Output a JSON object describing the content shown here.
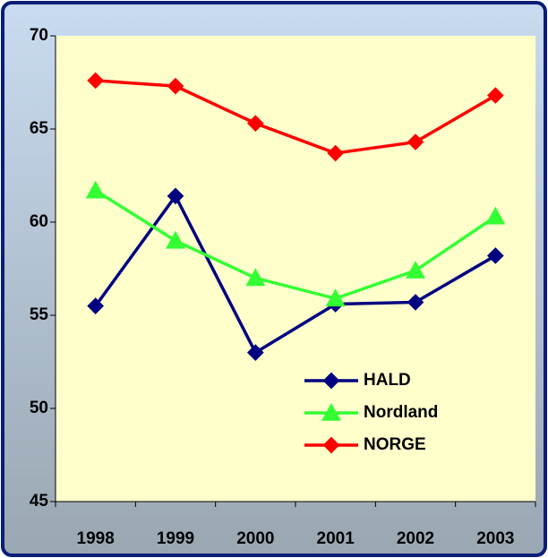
{
  "chart_data": {
    "type": "line",
    "categories": [
      "1998",
      "1999",
      "2000",
      "2001",
      "2002",
      "2003"
    ],
    "series": [
      {
        "name": "HALD",
        "color": "#000080",
        "marker": "diamond",
        "values": [
          55.5,
          61.4,
          53.0,
          55.6,
          55.7,
          58.2
        ]
      },
      {
        "name": "Nordland",
        "color": "#33ff33",
        "marker": "triangle",
        "values": [
          61.7,
          59.0,
          57.0,
          55.9,
          57.4,
          60.3
        ]
      },
      {
        "name": "NORGE",
        "color": "#ff0000",
        "marker": "diamond",
        "values": [
          67.6,
          67.3,
          65.3,
          63.7,
          64.3,
          66.8
        ]
      }
    ],
    "ylim": [
      45,
      70
    ],
    "yticks": [
      45,
      50,
      55,
      60,
      65,
      70
    ],
    "legend": "lower right"
  }
}
